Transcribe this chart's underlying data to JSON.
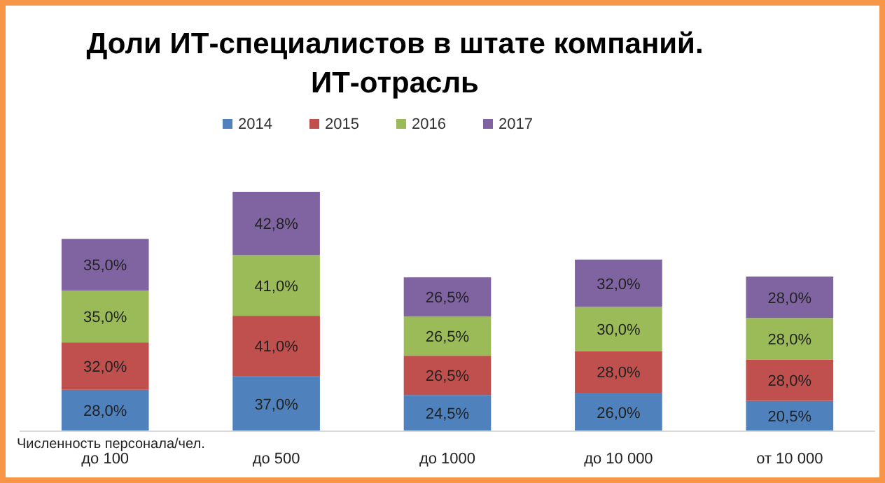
{
  "chart_data": {
    "type": "bar",
    "stacked": true,
    "title": "Доли ИТ-специалистов в штате компаний.\nИТ-отрасль",
    "xlabel": "Численность персонала/чел.",
    "legend": "top",
    "categories": [
      "до 100",
      "до 500",
      "до 1000",
      "до 10 000",
      "от 10 000"
    ],
    "series": [
      {
        "name": "2014",
        "color": "#4f81bd",
        "values": [
          28,
          37,
          24.5,
          26,
          20.5
        ],
        "value_labels": [
          "28,0%",
          "37,0%",
          "24,5%",
          "26,0%",
          "20,5%"
        ]
      },
      {
        "name": "2015",
        "color": "#c0504d",
        "values": [
          32,
          41,
          26.5,
          28,
          28
        ],
        "value_labels": [
          "32,0%",
          "41,0%",
          "26,5%",
          "28,0%",
          "28,0%"
        ]
      },
      {
        "name": "2016",
        "color": "#9bbb59",
        "values": [
          35,
          41,
          26.5,
          30,
          28
        ],
        "value_labels": [
          "35,0%",
          "41,0%",
          "26,5%",
          "30,0%",
          "28,0%"
        ]
      },
      {
        "name": "2017",
        "color": "#8064a2",
        "values": [
          35,
          42.8,
          26.5,
          32,
          28
        ],
        "value_labels": [
          "35,0%",
          "42,8%",
          "26,5%",
          "32,0%",
          "28,0%"
        ]
      }
    ]
  }
}
